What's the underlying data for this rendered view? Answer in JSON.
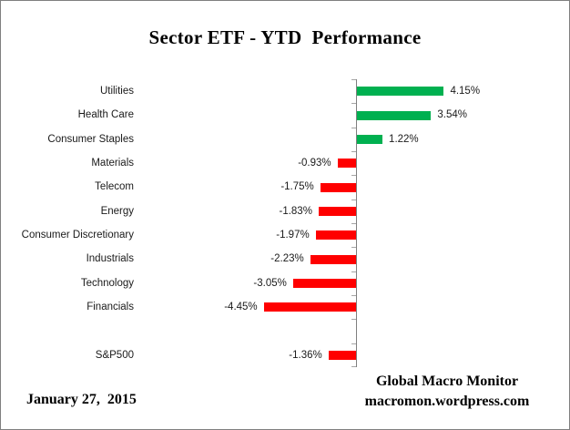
{
  "chart_data": {
    "type": "bar",
    "orientation": "horizontal",
    "title": "Sector ETF - YTD  Performance",
    "categories": [
      "Utilities",
      "Health Care",
      "Consumer Staples",
      "Materials",
      "Telecom",
      "Energy",
      "Consumer Discretionary",
      "Industrials",
      "Technology",
      "Financials",
      "",
      "S&P500"
    ],
    "values": [
      4.15,
      3.54,
      1.22,
      -0.93,
      -1.75,
      -1.83,
      -1.97,
      -2.23,
      -3.05,
      -4.45,
      null,
      -1.36
    ],
    "data_labels": [
      "4.15%",
      "3.54%",
      "1.22%",
      "-0.93%",
      "-1.75%",
      "-1.83%",
      "-1.97%",
      "-2.23%",
      "-3.05%",
      "-4.45%",
      "",
      "-1.36%"
    ],
    "positive_color": "#00B050",
    "negative_color": "#FF0000",
    "axis_color": "#7F7F7F",
    "tick_color": "#A6A6A6",
    "xlim": [
      -5,
      5
    ],
    "grid": false,
    "legend": false
  },
  "footer": {
    "date": "January 27,  2015",
    "source_line1": "Global Macro Monitor",
    "source_line2": "macromon.wordpress.com"
  }
}
